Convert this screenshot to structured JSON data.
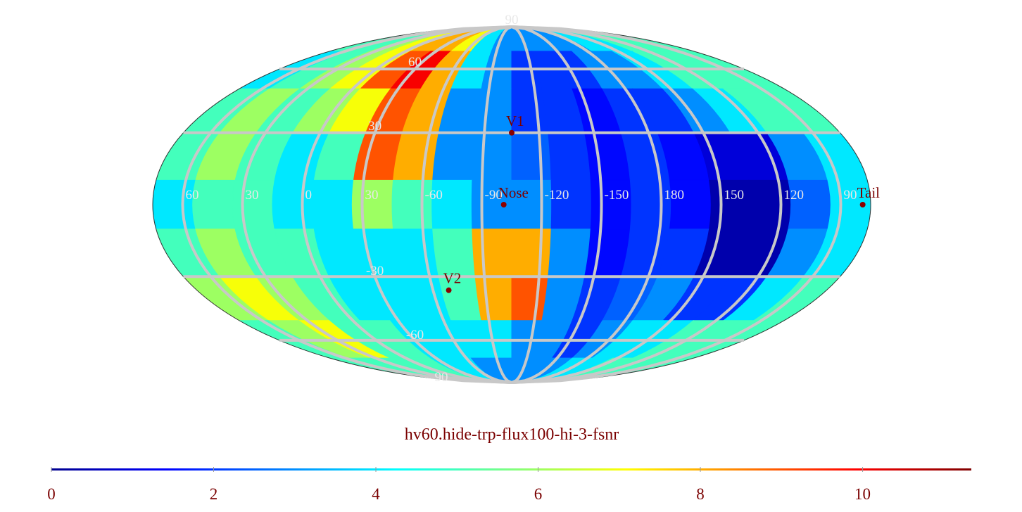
{
  "chart_data": {
    "type": "heatmap",
    "title": "hv60.hide-trp-flux100-hi-3-fsnr",
    "xlim": [
      -180,
      180
    ],
    "ylim": [
      -90,
      90
    ],
    "z": [
      [
        5,
        5,
        6,
        7,
        8,
        8,
        7,
        4,
        3,
        3,
        3,
        3,
        3,
        4,
        4,
        5,
        5,
        5
      ],
      [
        4,
        5,
        6,
        7,
        9,
        10,
        8,
        4,
        3,
        2,
        2,
        2,
        3,
        3,
        4,
        5,
        5,
        5
      ],
      [
        5,
        6,
        5,
        6,
        7,
        9,
        8,
        3,
        3,
        2,
        2,
        1.5,
        2,
        2,
        3,
        4,
        5,
        5
      ],
      [
        5,
        6,
        5,
        4,
        5,
        9,
        8,
        3,
        3,
        2.5,
        2,
        1.5,
        2,
        1.5,
        1,
        1,
        3,
        4
      ],
      [
        4,
        5,
        5,
        4,
        4,
        6,
        5,
        4,
        3,
        3,
        2,
        1.5,
        2,
        1.5,
        0.5,
        0.5,
        2.5,
        4
      ],
      [
        5,
        6,
        5,
        5,
        4,
        4,
        4,
        5,
        8,
        8,
        3,
        1.5,
        2,
        2,
        0.5,
        0.5,
        3,
        4
      ],
      [
        6,
        7,
        6,
        5,
        4,
        4,
        4,
        5,
        8,
        9,
        3,
        2,
        2.5,
        3,
        2,
        2,
        4,
        5
      ],
      [
        5,
        6,
        7,
        5,
        5,
        4,
        4,
        4,
        4,
        3,
        3,
        2,
        3,
        4,
        4,
        5,
        5,
        5
      ],
      [
        5,
        5,
        5,
        5,
        5,
        4,
        4,
        3,
        3,
        3,
        3,
        3,
        4,
        4,
        5,
        5,
        5,
        5
      ]
    ],
    "xticks": [
      {
        "value": -165,
        "label": "60"
      },
      {
        "value": -135,
        "label": "30"
      },
      {
        "value": -105,
        "label": "0"
      },
      {
        "value": -75,
        "label": "30"
      },
      {
        "value": -45,
        "label": "-60"
      },
      {
        "value": -15,
        "label": "-90"
      },
      {
        "value": 15,
        "label": "-120"
      },
      {
        "value": 45,
        "label": "-150"
      },
      {
        "value": 75,
        "label": "180"
      },
      {
        "value": 105,
        "label": "150"
      },
      {
        "value": 135,
        "label": "120"
      },
      {
        "value": 165,
        "label": "90"
      }
    ],
    "yticks": [
      90,
      60,
      30,
      -30,
      -60,
      {
        "value": -90,
        "label": "90"
      }
    ],
    "points": [
      {
        "label": "V1",
        "lon": 0,
        "lat": 30
      },
      {
        "label": "Nose",
        "lon": -4,
        "lat": 0
      },
      {
        "label": "V2",
        "lon": -36,
        "lat": -36
      },
      {
        "label": "Tail",
        "lon": 176,
        "lat": 0
      }
    ],
    "colorbar": {
      "lim": [
        0,
        11.34
      ],
      "ticks": [
        0,
        2,
        4,
        6,
        8,
        10
      ]
    }
  }
}
